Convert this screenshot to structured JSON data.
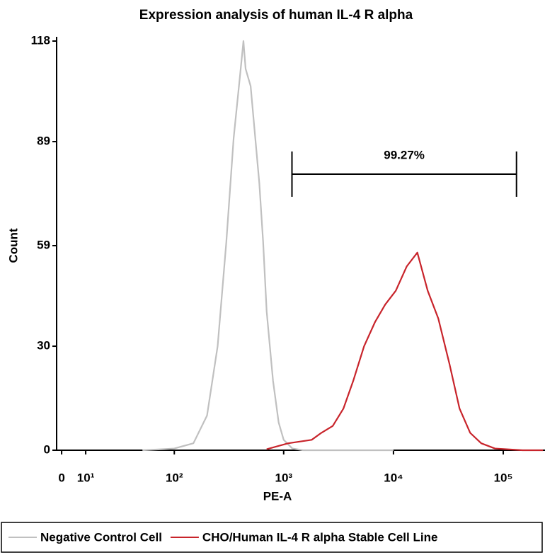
{
  "chart_data": {
    "type": "histogram-overlay",
    "title": "Expression analysis of human IL-4 R alpha",
    "x_label": "PE-A",
    "y_label": "Count",
    "xscale": "biexponential",
    "xlim": [
      -2,
      240000
    ],
    "xticks": [
      0,
      {
        "value": 10,
        "label": "10¹"
      },
      {
        "value": 100,
        "label": "10²"
      },
      {
        "value": 1000,
        "label": "10³"
      },
      {
        "value": 10000,
        "label": "10⁴"
      },
      {
        "value": 100000,
        "label": "10⁵"
      }
    ],
    "ylim": [
      0,
      118
    ],
    "yticks": [
      0,
      30,
      59,
      89,
      118
    ],
    "gate": {
      "label": "99.27%",
      "range": [
        1190,
        132000
      ]
    },
    "legend": "bottom",
    "series": [
      {
        "name": "Negative Control Cell",
        "color": "#c0c0c0",
        "x": [
          50,
          80,
          100,
          150,
          200,
          250,
          300,
          350,
          400,
          430,
          450,
          500,
          600,
          650,
          700,
          800,
          900,
          1000,
          1200,
          1500,
          3000,
          10000
        ],
        "values": [
          0,
          0.3,
          0.5,
          2,
          10,
          30,
          60,
          90,
          108,
          118,
          110,
          105,
          77,
          60,
          40,
          20,
          8,
          3,
          0.5,
          0,
          0,
          0
        ]
      },
      {
        "name": "CHO/Human IL-4 R alpha Stable Cell Line",
        "color": "#c8242b",
        "x": [
          700,
          1100,
          1800,
          2200,
          2800,
          3500,
          4300,
          5400,
          6800,
          8400,
          10500,
          13200,
          16500,
          20500,
          25600,
          32300,
          40000,
          50000,
          63000,
          84000,
          150000,
          230000
        ],
        "values": [
          0.3,
          2,
          3,
          5,
          7,
          12,
          20,
          30,
          37,
          42,
          46,
          53,
          57,
          46,
          38,
          25,
          12,
          5,
          2,
          0.5,
          0,
          0
        ]
      }
    ]
  }
}
